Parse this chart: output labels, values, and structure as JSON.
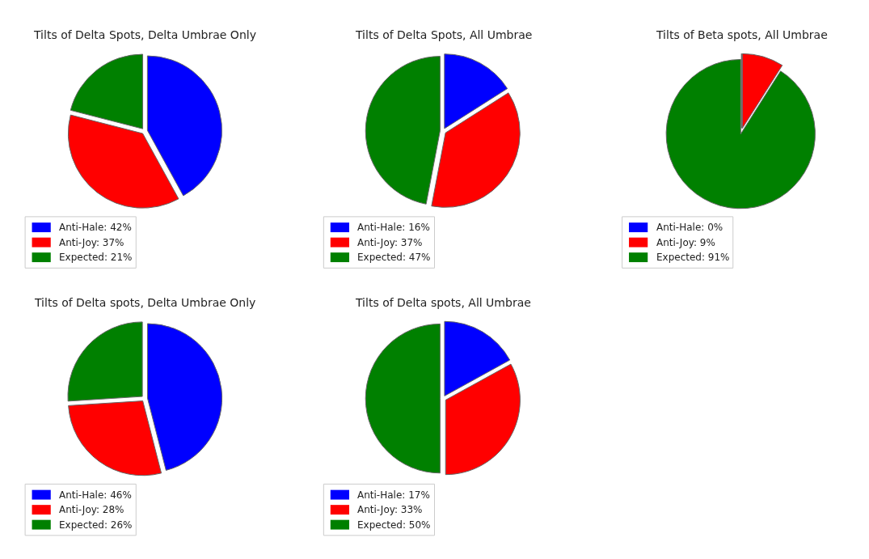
{
  "chart_data": [
    {
      "type": "pie",
      "title": "Tilts of Delta Spots, Delta Umbrae Only",
      "categories": [
        "Anti-Hale: 42%",
        "Anti-Joy: 37%",
        "Expected: 21%"
      ],
      "values": [
        42,
        37,
        21
      ],
      "colors": [
        "#0000ff",
        "#ff0000",
        "#008000"
      ],
      "legend": "bottom left"
    },
    {
      "type": "pie",
      "title": "Tilts of Delta Spots, All Umbrae",
      "categories": [
        "Anti-Hale: 16%",
        "Anti-Joy: 37%",
        "Expected: 47%"
      ],
      "values": [
        16,
        37,
        47
      ],
      "colors": [
        "#0000ff",
        "#ff0000",
        "#008000"
      ],
      "legend": "bottom left"
    },
    {
      "type": "pie",
      "title": "Tilts of Beta spots, All Umbrae",
      "categories": [
        "Anti-Hale: 0%",
        "Anti-Joy: 9%",
        "Expected: 91%"
      ],
      "values": [
        0,
        9,
        91
      ],
      "colors": [
        "#0000ff",
        "#ff0000",
        "#008000"
      ],
      "legend": "bottom left"
    },
    {
      "type": "pie",
      "title": "Tilts of Delta spots, Delta Umbrae Only",
      "categories": [
        "Anti-Hale: 46%",
        "Anti-Joy: 28%",
        "Expected: 26%"
      ],
      "values": [
        46,
        28,
        26
      ],
      "colors": [
        "#0000ff",
        "#ff0000",
        "#008000"
      ],
      "legend": "bottom left"
    },
    {
      "type": "pie",
      "title": "Tilts of Delta spots, All Umbrae",
      "categories": [
        "Anti-Hale: 17%",
        "Anti-Joy: 33%",
        "Expected: 50%"
      ],
      "values": [
        17,
        33,
        50
      ],
      "colors": [
        "#0000ff",
        "#ff0000",
        "#008000"
      ],
      "legend": "bottom left"
    }
  ]
}
